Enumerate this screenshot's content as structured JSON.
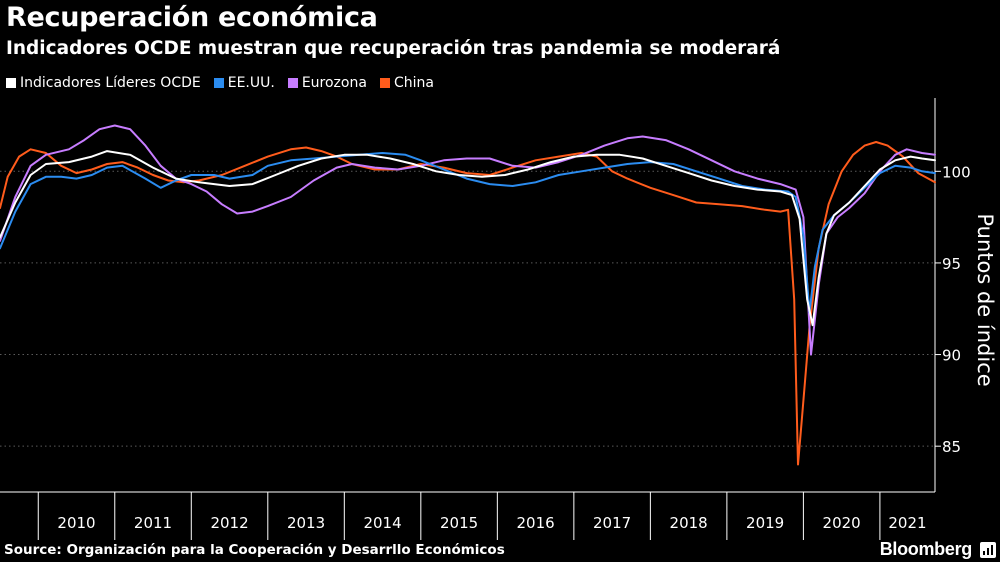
{
  "header": {
    "title": "Recuperación económica",
    "subtitle": "Indicadores OCDE muestran que recuperación tras pandemia se moderará"
  },
  "footer": {
    "source": "Source: Organización para la Cooperación y Desarrllo Económicos",
    "brand": "Bloomberg",
    "brand_icon": "bloomberg-terminal-icon"
  },
  "colors": {
    "background": "#000000",
    "grid": "#5a5a5a",
    "oecd": "#ffffff",
    "us": "#2b8cf0",
    "eurozone": "#c77dff",
    "china": "#ff5c1c"
  },
  "chart_data": {
    "type": "line",
    "ylabel": "Puntos de índice",
    "y_axis_side": "right",
    "ylim": [
      82.5,
      104
    ],
    "yticks": [
      85,
      90,
      95,
      100
    ],
    "xlim": [
      2009.5,
      2021.72
    ],
    "x_tick_labels": [
      "2010",
      "2011",
      "2012",
      "2013",
      "2014",
      "2015",
      "2016",
      "2017",
      "2018",
      "2019",
      "2020",
      "2021"
    ],
    "grid": "horizontal dotted",
    "legend_placement": "top-left",
    "series": [
      {
        "name": "Indicadores Líderes OCDE",
        "color": "#ffffff",
        "points": [
          [
            2009.5,
            96.4
          ],
          [
            2009.7,
            98.3
          ],
          [
            2009.9,
            99.8
          ],
          [
            2010.1,
            100.4
          ],
          [
            2010.4,
            100.5
          ],
          [
            2010.7,
            100.8
          ],
          [
            2010.9,
            101.1
          ],
          [
            2011.2,
            100.9
          ],
          [
            2011.5,
            100.2
          ],
          [
            2011.8,
            99.6
          ],
          [
            2012.1,
            99.4
          ],
          [
            2012.5,
            99.2
          ],
          [
            2012.8,
            99.3
          ],
          [
            2013.1,
            99.8
          ],
          [
            2013.4,
            100.3
          ],
          [
            2013.7,
            100.7
          ],
          [
            2014.0,
            100.9
          ],
          [
            2014.3,
            100.9
          ],
          [
            2014.6,
            100.7
          ],
          [
            2014.9,
            100.4
          ],
          [
            2015.2,
            100.0
          ],
          [
            2015.5,
            99.8
          ],
          [
            2015.8,
            99.7
          ],
          [
            2016.1,
            99.8
          ],
          [
            2016.4,
            100.1
          ],
          [
            2016.7,
            100.5
          ],
          [
            2017.0,
            100.8
          ],
          [
            2017.3,
            100.9
          ],
          [
            2017.6,
            100.9
          ],
          [
            2017.9,
            100.7
          ],
          [
            2018.2,
            100.3
          ],
          [
            2018.5,
            99.9
          ],
          [
            2018.8,
            99.5
          ],
          [
            2019.1,
            99.2
          ],
          [
            2019.4,
            99.0
          ],
          [
            2019.7,
            98.9
          ],
          [
            2019.85,
            98.7
          ],
          [
            2019.95,
            97.4
          ],
          [
            2020.05,
            93.0
          ],
          [
            2020.12,
            91.6
          ],
          [
            2020.2,
            94.2
          ],
          [
            2020.3,
            96.6
          ],
          [
            2020.4,
            97.6
          ],
          [
            2020.6,
            98.3
          ],
          [
            2020.8,
            99.2
          ],
          [
            2021.0,
            100.1
          ],
          [
            2021.2,
            100.6
          ],
          [
            2021.4,
            100.8
          ],
          [
            2021.55,
            100.7
          ],
          [
            2021.72,
            100.6
          ]
        ]
      },
      {
        "name": "EE.UU.",
        "color": "#2b8cf0",
        "points": [
          [
            2009.5,
            95.8
          ],
          [
            2009.7,
            97.8
          ],
          [
            2009.9,
            99.3
          ],
          [
            2010.1,
            99.7
          ],
          [
            2010.3,
            99.7
          ],
          [
            2010.5,
            99.6
          ],
          [
            2010.7,
            99.8
          ],
          [
            2010.9,
            100.2
          ],
          [
            2011.1,
            100.3
          ],
          [
            2011.4,
            99.6
          ],
          [
            2011.6,
            99.1
          ],
          [
            2011.8,
            99.5
          ],
          [
            2012.0,
            99.8
          ],
          [
            2012.3,
            99.8
          ],
          [
            2012.5,
            99.6
          ],
          [
            2012.8,
            99.8
          ],
          [
            2013.0,
            100.3
          ],
          [
            2013.3,
            100.6
          ],
          [
            2013.6,
            100.7
          ],
          [
            2013.9,
            100.8
          ],
          [
            2014.2,
            100.9
          ],
          [
            2014.5,
            101.0
          ],
          [
            2014.8,
            100.9
          ],
          [
            2015.0,
            100.6
          ],
          [
            2015.3,
            100.1
          ],
          [
            2015.6,
            99.6
          ],
          [
            2015.9,
            99.3
          ],
          [
            2016.2,
            99.2
          ],
          [
            2016.5,
            99.4
          ],
          [
            2016.8,
            99.8
          ],
          [
            2017.1,
            100.0
          ],
          [
            2017.4,
            100.2
          ],
          [
            2017.7,
            100.4
          ],
          [
            2018.0,
            100.5
          ],
          [
            2018.3,
            100.4
          ],
          [
            2018.6,
            100.0
          ],
          [
            2018.9,
            99.6
          ],
          [
            2019.2,
            99.2
          ],
          [
            2019.5,
            99.0
          ],
          [
            2019.8,
            98.9
          ],
          [
            2019.9,
            98.6
          ],
          [
            2020.0,
            96.5
          ],
          [
            2020.08,
            92.3
          ],
          [
            2020.15,
            94.8
          ],
          [
            2020.25,
            96.8
          ],
          [
            2020.4,
            97.6
          ],
          [
            2020.6,
            98.3
          ],
          [
            2020.8,
            99.1
          ],
          [
            2021.0,
            99.9
          ],
          [
            2021.2,
            100.3
          ],
          [
            2021.4,
            100.2
          ],
          [
            2021.55,
            100.0
          ],
          [
            2021.72,
            99.9
          ]
        ]
      },
      {
        "name": "Eurozona",
        "color": "#c77dff",
        "points": [
          [
            2009.5,
            96.2
          ],
          [
            2009.7,
            98.6
          ],
          [
            2009.9,
            100.3
          ],
          [
            2010.1,
            100.9
          ],
          [
            2010.4,
            101.2
          ],
          [
            2010.6,
            101.7
          ],
          [
            2010.8,
            102.3
          ],
          [
            2011.0,
            102.5
          ],
          [
            2011.2,
            102.3
          ],
          [
            2011.4,
            101.4
          ],
          [
            2011.6,
            100.3
          ],
          [
            2011.8,
            99.6
          ],
          [
            2012.0,
            99.3
          ],
          [
            2012.2,
            98.9
          ],
          [
            2012.4,
            98.2
          ],
          [
            2012.6,
            97.7
          ],
          [
            2012.8,
            97.8
          ],
          [
            2013.0,
            98.1
          ],
          [
            2013.3,
            98.6
          ],
          [
            2013.6,
            99.5
          ],
          [
            2013.9,
            100.2
          ],
          [
            2014.1,
            100.4
          ],
          [
            2014.4,
            100.2
          ],
          [
            2014.7,
            100.1
          ],
          [
            2015.0,
            100.3
          ],
          [
            2015.3,
            100.6
          ],
          [
            2015.6,
            100.7
          ],
          [
            2015.9,
            100.7
          ],
          [
            2016.2,
            100.3
          ],
          [
            2016.5,
            100.2
          ],
          [
            2016.8,
            100.5
          ],
          [
            2017.1,
            100.9
          ],
          [
            2017.4,
            101.4
          ],
          [
            2017.7,
            101.8
          ],
          [
            2017.9,
            101.9
          ],
          [
            2018.2,
            101.7
          ],
          [
            2018.5,
            101.2
          ],
          [
            2018.8,
            100.6
          ],
          [
            2019.1,
            100.0
          ],
          [
            2019.4,
            99.6
          ],
          [
            2019.7,
            99.3
          ],
          [
            2019.9,
            99.0
          ],
          [
            2020.0,
            97.5
          ],
          [
            2020.1,
            90.0
          ],
          [
            2020.2,
            93.8
          ],
          [
            2020.3,
            96.6
          ],
          [
            2020.45,
            97.5
          ],
          [
            2020.6,
            98.0
          ],
          [
            2020.8,
            98.8
          ],
          [
            2021.0,
            100.0
          ],
          [
            2021.2,
            100.9
          ],
          [
            2021.35,
            101.2
          ],
          [
            2021.55,
            101.0
          ],
          [
            2021.72,
            100.9
          ]
        ]
      },
      {
        "name": "China",
        "color": "#ff5c1c",
        "points": [
          [
            2009.5,
            98.0
          ],
          [
            2009.6,
            99.7
          ],
          [
            2009.75,
            100.8
          ],
          [
            2009.9,
            101.2
          ],
          [
            2010.1,
            101.0
          ],
          [
            2010.3,
            100.3
          ],
          [
            2010.5,
            99.9
          ],
          [
            2010.7,
            100.1
          ],
          [
            2010.9,
            100.4
          ],
          [
            2011.1,
            100.5
          ],
          [
            2011.3,
            100.2
          ],
          [
            2011.5,
            99.8
          ],
          [
            2011.7,
            99.5
          ],
          [
            2011.9,
            99.4
          ],
          [
            2012.1,
            99.5
          ],
          [
            2012.4,
            99.8
          ],
          [
            2012.7,
            100.3
          ],
          [
            2013.0,
            100.8
          ],
          [
            2013.3,
            101.2
          ],
          [
            2013.5,
            101.3
          ],
          [
            2013.7,
            101.1
          ],
          [
            2013.9,
            100.8
          ],
          [
            2014.1,
            100.4
          ],
          [
            2014.4,
            100.1
          ],
          [
            2014.7,
            100.1
          ],
          [
            2015.0,
            100.4
          ],
          [
            2015.3,
            100.2
          ],
          [
            2015.6,
            99.9
          ],
          [
            2015.9,
            99.8
          ],
          [
            2016.2,
            100.2
          ],
          [
            2016.5,
            100.6
          ],
          [
            2016.8,
            100.8
          ],
          [
            2017.1,
            101.0
          ],
          [
            2017.3,
            100.8
          ],
          [
            2017.5,
            100.0
          ],
          [
            2017.7,
            99.6
          ],
          [
            2018.0,
            99.1
          ],
          [
            2018.3,
            98.7
          ],
          [
            2018.6,
            98.3
          ],
          [
            2018.9,
            98.2
          ],
          [
            2019.2,
            98.1
          ],
          [
            2019.5,
            97.9
          ],
          [
            2019.7,
            97.8
          ],
          [
            2019.8,
            97.9
          ],
          [
            2019.88,
            93.0
          ],
          [
            2019.93,
            84.0
          ],
          [
            2019.98,
            86.5
          ],
          [
            2020.08,
            91.5
          ],
          [
            2020.2,
            95.8
          ],
          [
            2020.33,
            98.2
          ],
          [
            2020.5,
            100.0
          ],
          [
            2020.65,
            100.9
          ],
          [
            2020.8,
            101.4
          ],
          [
            2020.95,
            101.6
          ],
          [
            2021.1,
            101.4
          ],
          [
            2021.3,
            100.8
          ],
          [
            2021.5,
            99.9
          ],
          [
            2021.72,
            99.4
          ]
        ]
      }
    ]
  }
}
